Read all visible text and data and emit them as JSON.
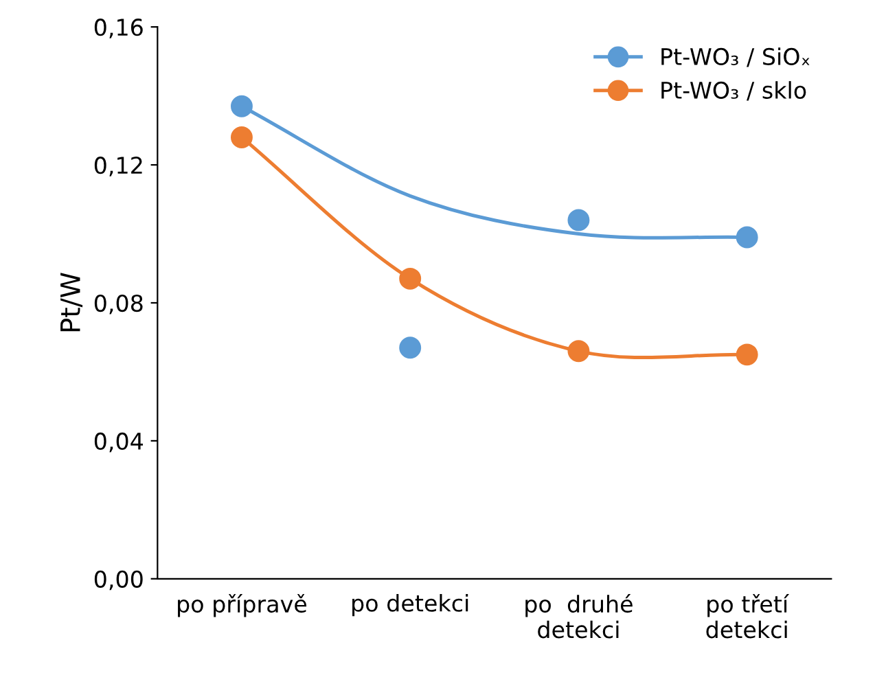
{
  "chart_data": {
    "type": "scatter",
    "ylabel": "Pt/W",
    "categories": [
      "po přípravě",
      "po detekci",
      "po  druhé\ndetekci",
      "po třetí\ndetekci"
    ],
    "ylim": [
      0,
      0.16
    ],
    "yticks": [
      {
        "value": 0,
        "label": "0,00"
      },
      {
        "value": 0.04,
        "label": "0,04"
      },
      {
        "value": 0.08,
        "label": "0,08"
      },
      {
        "value": 0.12,
        "label": "0,12"
      },
      {
        "value": 0.16,
        "label": "0,16"
      }
    ],
    "grid": false,
    "legend": "top right",
    "marker": "circle",
    "series": [
      {
        "name": "Pt-WO₃ / SiOₓ",
        "color": "#5b9bd5",
        "values": [
          0.137,
          0.067,
          0.104,
          0.099
        ]
      },
      {
        "name": "Pt-WO₃ / sklo",
        "color": "#ed7d31",
        "values": [
          0.128,
          0.087,
          0.066,
          0.065
        ]
      },
      {
        "type": "line",
        "marker": "none",
        "color": "#5b9bd5",
        "values": [
          0.137,
          0.111,
          0.1,
          0.099
        ]
      },
      {
        "type": "line",
        "marker": "none",
        "color": "#ed7d31",
        "values": [
          0.128,
          0.087,
          0.066,
          0.065
        ]
      }
    ]
  }
}
